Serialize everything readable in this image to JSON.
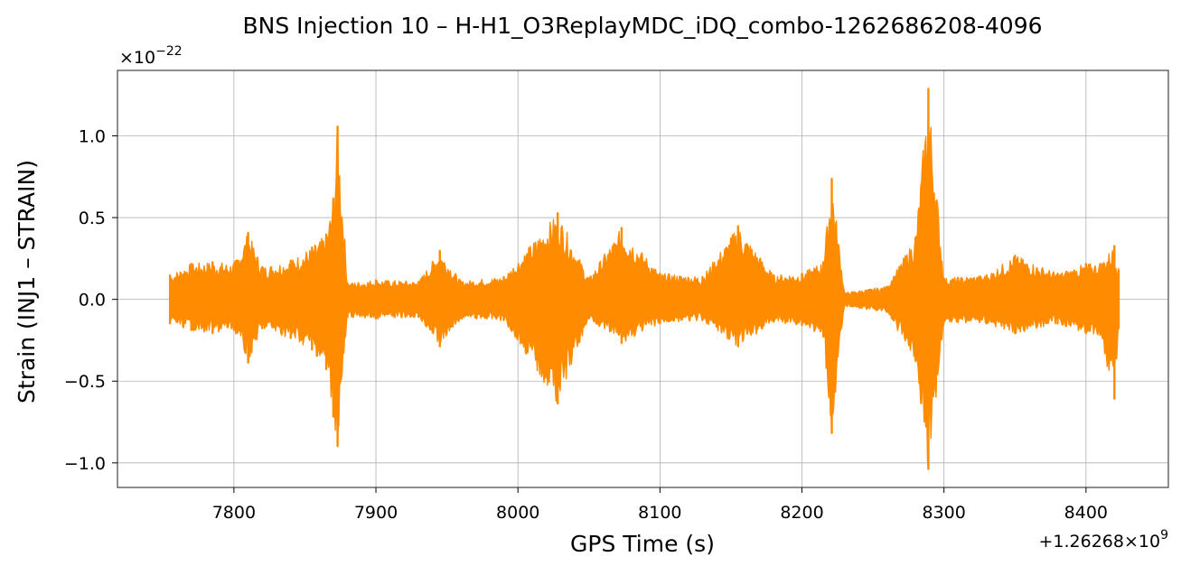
{
  "chart_data": {
    "type": "line",
    "title": "BNS Injection 10 – H-H1_O3ReplayMDC_iDQ_combo-1262686208-4096",
    "xlabel": "GPS Time (s)",
    "ylabel": "Strain (INJ1 – STRAIN)",
    "x_offset_label": "+1.26268×10",
    "x_offset_exponent": "9",
    "y_multiplier_label": "×10",
    "y_multiplier_exponent": "−22",
    "x_ticks": [
      7800,
      7900,
      8000,
      8100,
      8200,
      8300,
      8400
    ],
    "x_tick_labels": [
      "7800",
      "7900",
      "8000",
      "8100",
      "8200",
      "8300",
      "8400"
    ],
    "y_ticks": [
      -1.0,
      -0.5,
      0.0,
      0.5,
      1.0
    ],
    "y_tick_labels": [
      "−1.0",
      "−0.5",
      "0.0",
      "0.5",
      "1.0"
    ],
    "xlim": [
      7718,
      8458
    ],
    "ylim": [
      -1.15,
      1.4
    ],
    "grid": true,
    "line_color": "#ff8c00",
    "series": [
      {
        "color": "#ff8c00",
        "x": [
          7755,
          7770,
          7785,
          7800,
          7810,
          7820,
          7840,
          7855,
          7865,
          7870,
          7873,
          7880,
          7900,
          7930,
          7945,
          7960,
          7990,
          8028,
          8050,
          8073,
          8100,
          8130,
          8155,
          8180,
          8200,
          8215,
          8221,
          8230,
          8260,
          8280,
          8289,
          8300,
          8330,
          8350,
          8380,
          8400,
          8410,
          8420,
          8423
        ],
        "y_upper": [
          0.15,
          0.22,
          0.23,
          0.22,
          0.41,
          0.2,
          0.24,
          0.32,
          0.4,
          0.62,
          1.06,
          0.1,
          0.12,
          0.11,
          0.3,
          0.11,
          0.14,
          0.53,
          0.13,
          0.44,
          0.16,
          0.14,
          0.45,
          0.15,
          0.16,
          0.23,
          0.74,
          0.04,
          0.08,
          0.38,
          1.29,
          0.13,
          0.15,
          0.27,
          0.16,
          0.22,
          0.22,
          0.33,
          0.18
        ],
        "y_lower": [
          -0.15,
          -0.19,
          -0.21,
          -0.19,
          -0.39,
          -0.18,
          -0.24,
          -0.31,
          -0.43,
          -0.72,
          -0.9,
          -0.11,
          -0.12,
          -0.11,
          -0.29,
          -0.12,
          -0.13,
          -0.64,
          -0.12,
          -0.27,
          -0.15,
          -0.13,
          -0.29,
          -0.14,
          -0.16,
          -0.23,
          -0.82,
          -0.04,
          -0.08,
          -0.38,
          -1.04,
          -0.14,
          -0.15,
          -0.21,
          -0.15,
          -0.21,
          -0.22,
          -0.61,
          -0.18
        ]
      }
    ]
  }
}
